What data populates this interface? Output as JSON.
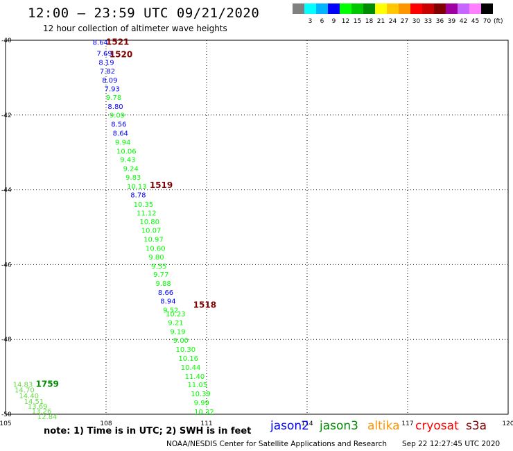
{
  "header": {
    "title": "12:00 – 23:59 UTC 09/21/2020",
    "subtitle": "12 hour collection of altimeter wave heights"
  },
  "color_scale": {
    "unit": "(ft)",
    "bins": [
      {
        "label": "",
        "color": "#808080"
      },
      {
        "label": "3",
        "color": "#00ffff"
      },
      {
        "label": "6",
        "color": "#00b4ff"
      },
      {
        "label": "9",
        "color": "#0000ff"
      },
      {
        "label": "12",
        "color": "#00ff00"
      },
      {
        "label": "15",
        "color": "#00c800"
      },
      {
        "label": "18",
        "color": "#008c00"
      },
      {
        "label": "21",
        "color": "#ffff00"
      },
      {
        "label": "24",
        "color": "#ffc800"
      },
      {
        "label": "27",
        "color": "#ff9600"
      },
      {
        "label": "30",
        "color": "#ff0000"
      },
      {
        "label": "33",
        "color": "#c80000"
      },
      {
        "label": "36",
        "color": "#800000"
      },
      {
        "label": "39",
        "color": "#a000a0"
      },
      {
        "label": "42",
        "color": "#c864ff"
      },
      {
        "label": "45",
        "color": "#ff80ff"
      },
      {
        "label": "70",
        "color": "#000000"
      }
    ]
  },
  "map": {
    "lon_ticks": [
      "105",
      "108",
      "111",
      "114",
      "117",
      "120"
    ],
    "lat_ticks": [
      "-40",
      "-42",
      "-44",
      "-46",
      "-48",
      "-50"
    ],
    "lon_range": [
      105,
      120
    ],
    "lat_range": [
      -40,
      -50
    ],
    "time_labels": [
      {
        "text": "1521",
        "lon": 108.0,
        "lat": -40.12,
        "color": "#800000"
      },
      {
        "text": "1520",
        "lon": 108.1,
        "lat": -40.45,
        "color": "#800000"
      },
      {
        "text": "1519",
        "lon": 109.3,
        "lat": -43.95,
        "color": "#800000"
      },
      {
        "text": "1518",
        "lon": 110.6,
        "lat": -47.15,
        "color": "#800000"
      },
      {
        "text": "1759",
        "lon": 105.9,
        "lat": -49.27,
        "color": "#008c00"
      }
    ],
    "track_jason3": [
      {
        "v": "14.83",
        "lon": 105.22,
        "lat": -49.27
      },
      {
        "v": "14.70",
        "lon": 105.27,
        "lat": -49.42
      },
      {
        "v": "14.40",
        "lon": 105.4,
        "lat": -49.57
      },
      {
        "v": "14.51",
        "lon": 105.55,
        "lat": -49.72
      },
      {
        "v": "13.69",
        "lon": 105.66,
        "lat": -49.85
      },
      {
        "v": "13.26",
        "lon": 105.78,
        "lat": -49.98
      },
      {
        "v": "12.84",
        "lon": 105.95,
        "lat": -50.13
      }
    ],
    "track_jason2": [
      {
        "v": "8.64",
        "lon": 107.6,
        "lat": -40.12
      },
      {
        "v": "7.69",
        "lon": 107.72,
        "lat": -40.42
      },
      {
        "v": "8.19",
        "lon": 107.78,
        "lat": -40.66
      },
      {
        "v": "7.82",
        "lon": 107.81,
        "lat": -40.89
      },
      {
        "v": "8.09",
        "lon": 107.88,
        "lat": -41.13
      },
      {
        "v": "7.93",
        "lon": 107.95,
        "lat": -41.36
      },
      {
        "v": "9.78",
        "lon": 108.0,
        "lat": -41.6
      },
      {
        "v": "8.80",
        "lon": 108.05,
        "lat": -41.84
      },
      {
        "v": "9.09",
        "lon": 108.1,
        "lat": -42.07
      },
      {
        "v": "8.56",
        "lon": 108.15,
        "lat": -42.31
      },
      {
        "v": "8.64",
        "lon": 108.2,
        "lat": -42.55
      },
      {
        "v": "9.94",
        "lon": 108.27,
        "lat": -42.79
      },
      {
        "v": "10.06",
        "lon": 108.31,
        "lat": -43.03
      },
      {
        "v": "9.43",
        "lon": 108.42,
        "lat": -43.26
      },
      {
        "v": "9.24",
        "lon": 108.51,
        "lat": -43.5
      },
      {
        "v": "9.83",
        "lon": 108.58,
        "lat": -43.73
      },
      {
        "v": "10.13",
        "lon": 108.62,
        "lat": -43.97
      },
      {
        "v": "8.78",
        "lon": 108.73,
        "lat": -44.2
      },
      {
        "v": "10.35",
        "lon": 108.82,
        "lat": -44.45
      },
      {
        "v": "11.12",
        "lon": 108.91,
        "lat": -44.68
      },
      {
        "v": "10.80",
        "lon": 109.0,
        "lat": -44.92
      },
      {
        "v": "10.07",
        "lon": 109.05,
        "lat": -45.15
      },
      {
        "v": "10.97",
        "lon": 109.12,
        "lat": -45.39
      },
      {
        "v": "10.60",
        "lon": 109.18,
        "lat": -45.63
      },
      {
        "v": "9.80",
        "lon": 109.27,
        "lat": -45.86
      },
      {
        "v": "9.55",
        "lon": 109.35,
        "lat": -46.1
      },
      {
        "v": "9.77",
        "lon": 109.41,
        "lat": -46.33
      },
      {
        "v": "9.88",
        "lon": 109.48,
        "lat": -46.57
      },
      {
        "v": "8.66",
        "lon": 109.55,
        "lat": -46.81
      },
      {
        "v": "8.94",
        "lon": 109.62,
        "lat": -47.04
      },
      {
        "v": "9.52",
        "lon": 109.7,
        "lat": -47.28
      },
      {
        "v": "10.23",
        "lon": 109.78,
        "lat": -47.38
      },
      {
        "v": "9.21",
        "lon": 109.85,
        "lat": -47.62
      },
      {
        "v": "9.19",
        "lon": 109.91,
        "lat": -47.86
      },
      {
        "v": "9.00",
        "lon": 110.0,
        "lat": -48.09
      },
      {
        "v": "10.30",
        "lon": 110.08,
        "lat": -48.33
      },
      {
        "v": "10.16",
        "lon": 110.16,
        "lat": -48.57
      },
      {
        "v": "10.44",
        "lon": 110.23,
        "lat": -48.81
      },
      {
        "v": "11.40",
        "lon": 110.35,
        "lat": -49.05
      },
      {
        "v": "11.05",
        "lon": 110.43,
        "lat": -49.28
      },
      {
        "v": "10.39",
        "lon": 110.53,
        "lat": -49.52
      },
      {
        "v": "9.99",
        "lon": 110.62,
        "lat": -49.76
      },
      {
        "v": "10.32",
        "lon": 110.63,
        "lat": -50.0
      }
    ]
  },
  "note": "note:  1) Time is in UTC;  2) SWH is in feet",
  "satellites": [
    {
      "name": "jason2",
      "color": "#0000ff"
    },
    {
      "name": "jason3",
      "color": "#008c00"
    },
    {
      "name": "altika",
      "color": "#ff9600"
    },
    {
      "name": "cryosat",
      "color": "#ff0000"
    },
    {
      "name": "s3a",
      "color": "#800000"
    }
  ],
  "footer": {
    "credit": "NOAA/NESDIS Center for Satellite Applications and Research",
    "timestamp": "Sep 22 12:27:45 UTC 2020"
  }
}
